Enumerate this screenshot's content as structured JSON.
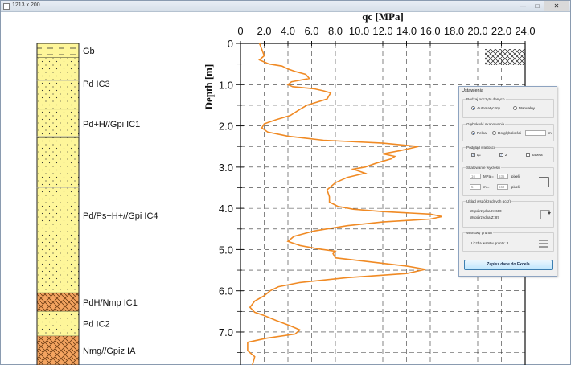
{
  "window": {
    "title": "1213 x 200",
    "minimize_glyph": "—",
    "maximize_glyph": "□",
    "close_glyph": "✕"
  },
  "chart_data": {
    "type": "line",
    "title": "qc [MPa]",
    "xlabel": "qc [MPa]",
    "ylabel": "Depth [m]",
    "xlim": [
      0,
      24
    ],
    "ylim": [
      0,
      7.8
    ],
    "x_ticks": [
      "0",
      "2.0",
      "4.0",
      "6.0",
      "8.0",
      "10.0",
      "12.0",
      "14.0",
      "16.0",
      "18.0",
      "20.0",
      "22.0",
      "24.0"
    ],
    "y_ticks": [
      "0",
      "1.0",
      "2.0",
      "3.0",
      "4.0",
      "5.0",
      "6.0",
      "7.0"
    ],
    "grid": true,
    "series": [
      {
        "color": "#f08a24",
        "points": [
          [
            1.6,
            0.0
          ],
          [
            1.8,
            0.15
          ],
          [
            2.0,
            0.3
          ],
          [
            1.6,
            0.4
          ],
          [
            2.4,
            0.5
          ],
          [
            3.5,
            0.55
          ],
          [
            4.0,
            0.62
          ],
          [
            4.6,
            0.68
          ],
          [
            5.5,
            0.75
          ],
          [
            5.8,
            0.85
          ],
          [
            4.3,
            0.93
          ],
          [
            4.0,
            1.0
          ],
          [
            4.4,
            1.05
          ],
          [
            6.2,
            1.1
          ],
          [
            7.0,
            1.15
          ],
          [
            7.6,
            1.2
          ],
          [
            7.3,
            1.35
          ],
          [
            5.6,
            1.5
          ],
          [
            5.0,
            1.6
          ],
          [
            4.2,
            1.75
          ],
          [
            3.0,
            1.85
          ],
          [
            2.0,
            1.95
          ],
          [
            1.8,
            2.05
          ],
          [
            2.3,
            2.15
          ],
          [
            4.0,
            2.25
          ],
          [
            7.0,
            2.35
          ],
          [
            12.0,
            2.42
          ],
          [
            15.0,
            2.5
          ],
          [
            13.5,
            2.6
          ],
          [
            12.0,
            2.68
          ],
          [
            13.0,
            2.74
          ],
          [
            12.7,
            2.8
          ],
          [
            11.5,
            2.9
          ],
          [
            10.5,
            3.0
          ],
          [
            9.5,
            3.05
          ],
          [
            10.5,
            3.15
          ],
          [
            9.0,
            3.25
          ],
          [
            8.0,
            3.38
          ],
          [
            7.3,
            3.55
          ],
          [
            7.5,
            3.72
          ],
          [
            7.5,
            3.85
          ],
          [
            8.2,
            3.95
          ],
          [
            9.5,
            4.02
          ],
          [
            12.0,
            4.08
          ],
          [
            16.0,
            4.14
          ],
          [
            17.0,
            4.2
          ],
          [
            16.0,
            4.26
          ],
          [
            12.0,
            4.33
          ],
          [
            9.0,
            4.42
          ],
          [
            6.2,
            4.55
          ],
          [
            4.5,
            4.68
          ],
          [
            4.0,
            4.8
          ],
          [
            5.0,
            4.9
          ],
          [
            6.5,
            4.98
          ],
          [
            8.0,
            5.04
          ],
          [
            7.8,
            5.1
          ],
          [
            8.0,
            5.2
          ],
          [
            11.0,
            5.3
          ],
          [
            14.0,
            5.4
          ],
          [
            15.6,
            5.48
          ],
          [
            14.0,
            5.58
          ],
          [
            9.0,
            5.68
          ],
          [
            5.0,
            5.8
          ],
          [
            3.2,
            5.9
          ],
          [
            2.5,
            6.0
          ],
          [
            2.0,
            6.12
          ],
          [
            1.2,
            6.25
          ],
          [
            0.8,
            6.4
          ],
          [
            1.2,
            6.52
          ],
          [
            2.0,
            6.6
          ],
          [
            3.0,
            6.72
          ],
          [
            4.2,
            6.85
          ],
          [
            5.0,
            6.95
          ],
          [
            4.6,
            7.05
          ],
          [
            2.2,
            7.15
          ],
          [
            0.6,
            7.25
          ],
          [
            0.6,
            7.45
          ],
          [
            1.2,
            7.6
          ],
          [
            1.0,
            7.8
          ]
        ]
      }
    ]
  },
  "soil_layers": [
    {
      "label": "Gb",
      "top": 0.0,
      "bottom": 0.35,
      "pattern": "dash"
    },
    {
      "label": "Pd  IC3",
      "top": 0.35,
      "bottom": 1.6,
      "pattern": "dots"
    },
    {
      "label": "Pd+H//Gpi  IC1",
      "top": 1.6,
      "bottom": 2.3,
      "pattern": "dots"
    },
    {
      "label": "Pd/Ps+H+//Gpi  IC4",
      "top": 2.3,
      "bottom": 6.05,
      "pattern": "dots"
    },
    {
      "label": "PdH/Nmp  IC1",
      "top": 6.05,
      "bottom": 6.5,
      "pattern": "hatch"
    },
    {
      "label": "Pd  IC2",
      "top": 6.5,
      "bottom": 7.1,
      "pattern": "dots"
    },
    {
      "label": "Nmg//Gpiz  IA",
      "top": 7.1,
      "bottom": 7.8,
      "pattern": "hatch"
    }
  ],
  "colors": {
    "sand": "#fef69a",
    "clay": "#f4a460",
    "curve": "#f08a24"
  },
  "settings": {
    "title": "Ustawienia",
    "reading_group": "Rodzaj odczytu danych",
    "auto_label": "Automatyczny",
    "manual_label": "Manualny",
    "depth_group": "Głębokość skanowania",
    "full_label": "Pełna",
    "to_depth_label": "Do głębokości",
    "depth_unit": "m",
    "preview_group": "Podgląd wartości",
    "qc_label": "qc",
    "z_label": "Z",
    "table_label": "Tabela",
    "scale_group": "Skalowanie wykresu",
    "scale_mpa_value": "16",
    "scale_mpa_unit": "MPa =",
    "scale_mpa_px": "535",
    "scale_px_unit_1": "pixeli",
    "scale_m_value": "5",
    "scale_m_unit": "m =",
    "scale_m_px": "560",
    "scale_px_unit_2": "pixeli",
    "coords_group": "Układ współrzędnych qc(z)",
    "coord_x": "Współrzędna X: 660",
    "coord_z": "Współrzędna Z: 87",
    "layers_group": "Warstwy gruntu",
    "layers_count": "Liczba warstw gruntu: 3",
    "save_button": "Zapisz dane do Excela"
  }
}
